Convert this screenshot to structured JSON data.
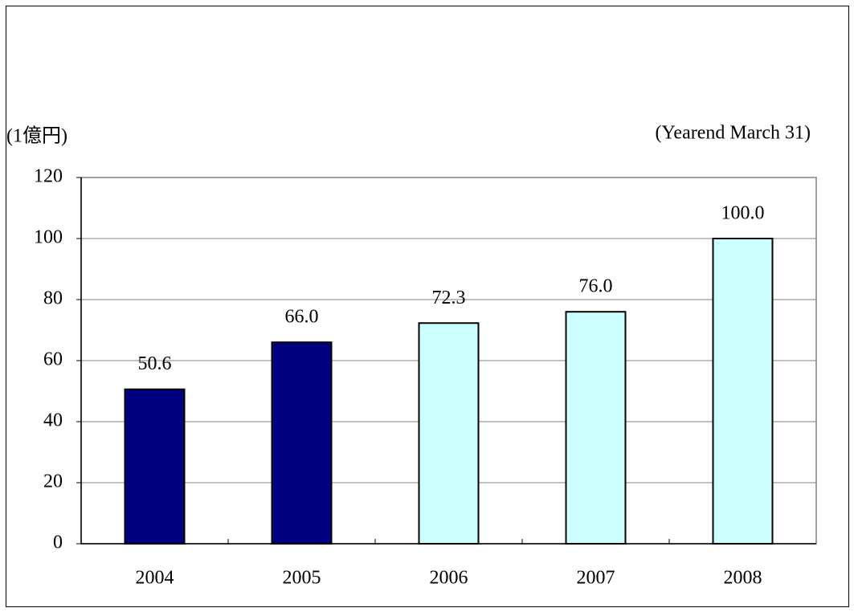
{
  "chart_data": {
    "type": "bar",
    "unit_label": "(1億円)",
    "note": "(Yearend March 31)",
    "categories": [
      "2004",
      "2005",
      "2006",
      "2007",
      "2008"
    ],
    "values": [
      50.6,
      66,
      72.3,
      76,
      100
    ],
    "value_labels": [
      "50.6",
      "66.0",
      "72.3",
      "76.0",
      "100.0"
    ],
    "colors": [
      "#000080",
      "#000080",
      "#ccffff",
      "#ccffff",
      "#ccffff"
    ],
    "ylim": [
      0,
      120
    ],
    "yticks": [
      0,
      20,
      40,
      60,
      80,
      100,
      120
    ],
    "grid": true
  }
}
